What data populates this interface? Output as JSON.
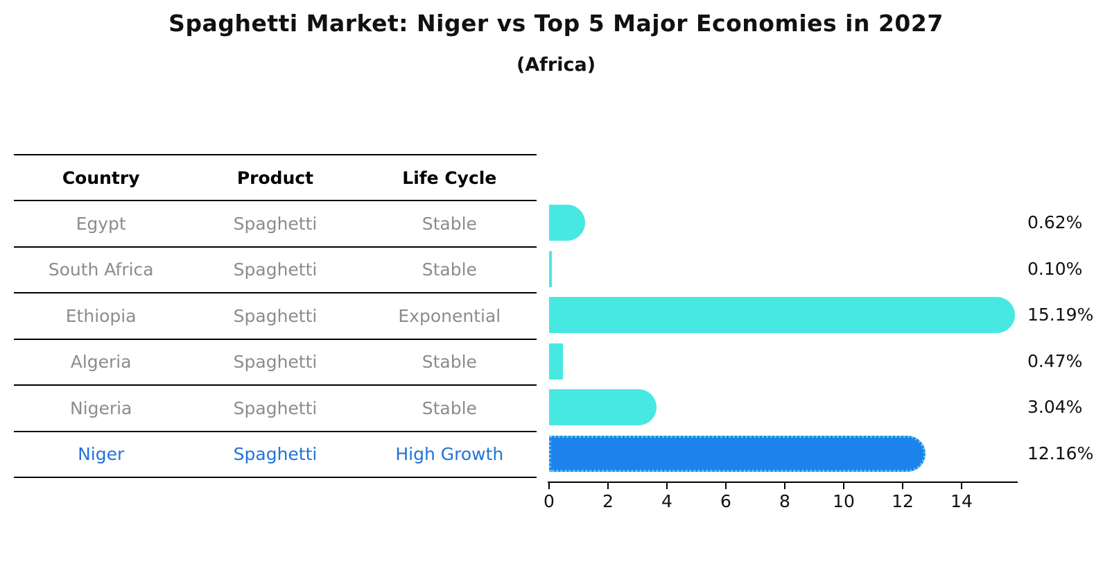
{
  "title": "Spaghetti Market: Niger vs Top 5 Major Economies in 2027",
  "subtitle": "(Africa)",
  "table": {
    "headers": [
      "Country",
      "Product",
      "Life Cycle"
    ],
    "rows": [
      {
        "country": "Egypt",
        "product": "Spaghetti",
        "life_cycle": "Stable",
        "highlight": false
      },
      {
        "country": "South Africa",
        "product": "Spaghetti",
        "life_cycle": "Stable",
        "highlight": false
      },
      {
        "country": "Ethiopia",
        "product": "Spaghetti",
        "life_cycle": "Exponential",
        "highlight": false
      },
      {
        "country": "Algeria",
        "product": "Spaghetti",
        "life_cycle": "Stable",
        "highlight": false
      },
      {
        "country": "Nigeria",
        "product": "Spaghetti",
        "life_cycle": "Stable",
        "highlight": false
      },
      {
        "country": "Niger",
        "product": "Spaghetti",
        "life_cycle": "High Growth",
        "highlight": true
      }
    ]
  },
  "chart_data": {
    "type": "bar",
    "orientation": "horizontal",
    "title": "Spaghetti Market: Niger vs Top 5 Major Economies in 2027",
    "subtitle": "(Africa)",
    "categories": [
      "Egypt",
      "South Africa",
      "Ethiopia",
      "Algeria",
      "Nigeria",
      "Niger"
    ],
    "values": [
      0.62,
      0.1,
      15.19,
      0.47,
      3.04,
      12.16
    ],
    "value_labels": [
      "0.62%",
      "0.10%",
      "15.19%",
      "0.47%",
      "3.04%",
      "12.16%"
    ],
    "x_ticks": [
      "0",
      "2",
      "4",
      "6",
      "8",
      "10",
      "12",
      "14"
    ],
    "x_tick_values": [
      0,
      2,
      4,
      6,
      8,
      10,
      12,
      14
    ],
    "xlim": [
      0,
      15.9
    ],
    "grid": false,
    "legend": false,
    "highlight_index": 5
  },
  "colors": {
    "bar": "#47E8E1",
    "highlight_bar": "#1E82EC",
    "highlight_bar_edge": "#4FC7F0",
    "table_text": "#8c8c8c",
    "table_header_text": "#000000",
    "highlight_text": "#2373d8",
    "axis": "#000000"
  }
}
